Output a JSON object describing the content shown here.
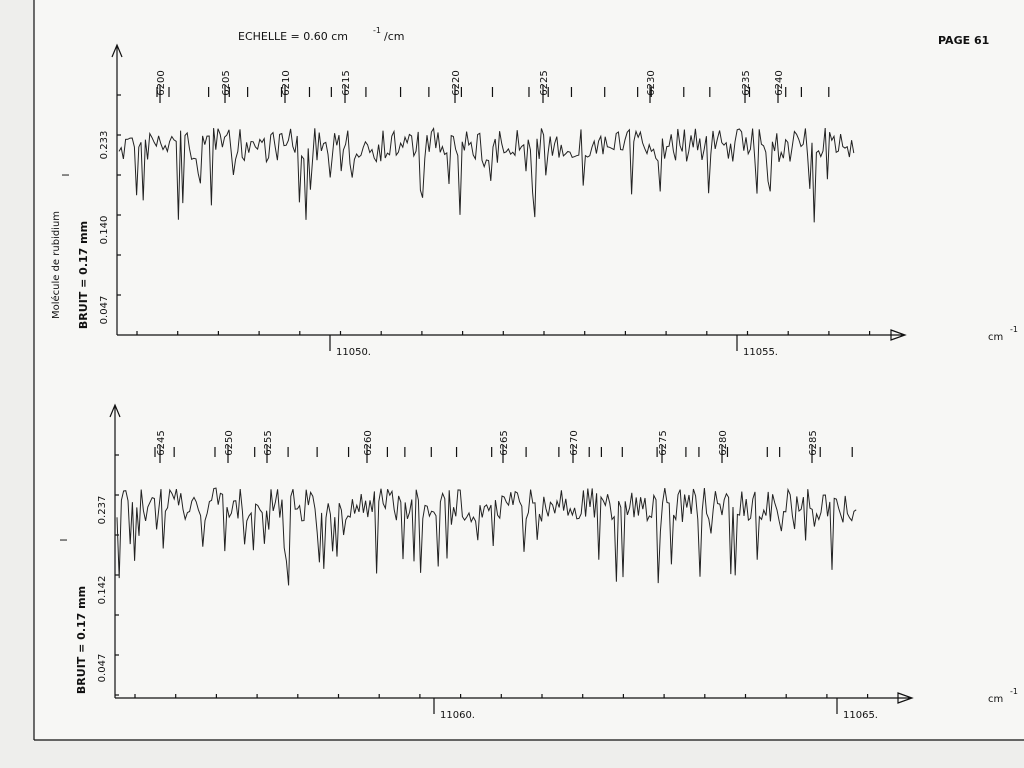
{
  "header": {
    "scale": "ECHELLE = 0.60 cm",
    "scale_exp": "-1",
    "scale_unit": "/cm",
    "page": "PAGE 61"
  },
  "panels": [
    {
      "molecule": "Molécule de rubidium",
      "noise": "BRUIT = 0.17 mm",
      "intensity_symbol": "I",
      "y_labels": [
        "0.233",
        "0.140",
        "0.047"
      ],
      "x_labels": [
        "11050.",
        "11055."
      ],
      "unit": "cm",
      "unit_exp": "-1",
      "lines": [
        "6200",
        "6205",
        "6210",
        "6215",
        "6220",
        "6225",
        "6230",
        "6235",
        "6240"
      ]
    },
    {
      "noise": "BRUIT = 0.17 mm",
      "intensity_symbol": "I",
      "y_labels": [
        "0.237",
        "0.142",
        "0.047"
      ],
      "x_labels": [
        "11060.",
        "11065."
      ],
      "unit": "cm",
      "unit_exp": "-1",
      "lines": [
        "6245",
        "6250",
        "6255",
        "6260",
        "6265",
        "6270",
        "6275",
        "6280",
        "6285"
      ]
    }
  ]
}
